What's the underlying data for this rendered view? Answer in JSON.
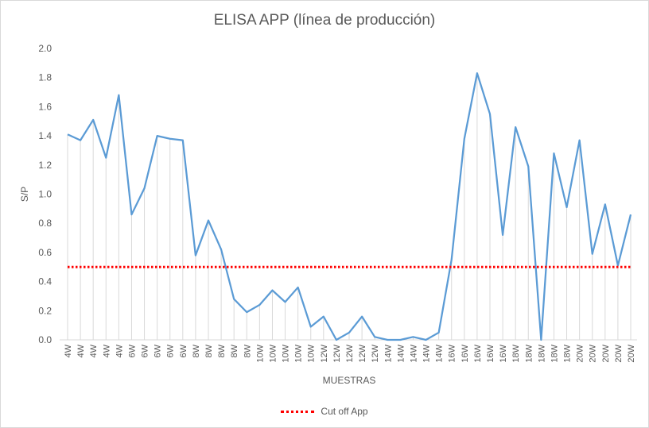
{
  "chart_data": {
    "type": "line",
    "title": "ELISA APP (línea de producción)",
    "xlabel": "MUESTRAS",
    "ylabel": "S/P",
    "ylim": [
      0,
      2.0
    ],
    "yticks": [
      "0.0",
      "0.2",
      "0.4",
      "0.6",
      "0.8",
      "1.0",
      "1.2",
      "1.4",
      "1.6",
      "1.8",
      "2.0"
    ],
    "grid": "vertical drop lines",
    "legend_position": "bottom",
    "categories": [
      "4W",
      "4W",
      "4W",
      "4W",
      "4W",
      "6W",
      "6W",
      "6W",
      "6W",
      "6W",
      "8W",
      "8W",
      "8W",
      "8W",
      "8W",
      "10W",
      "10W",
      "10W",
      "10W",
      "10W",
      "12W",
      "12W",
      "12W",
      "12W",
      "12W",
      "14W",
      "14W",
      "14W",
      "14W",
      "14W",
      "16W",
      "16W",
      "16W",
      "16W",
      "16W",
      "18W",
      "18W",
      "18W",
      "18W",
      "18W",
      "20W",
      "20W",
      "20W",
      "20W",
      "20W"
    ],
    "series": [
      {
        "name": "",
        "color": "#5b9bd5",
        "values": [
          1.41,
          1.37,
          1.51,
          1.25,
          1.68,
          0.86,
          1.04,
          1.4,
          1.38,
          1.37,
          0.58,
          0.82,
          0.62,
          0.28,
          0.19,
          0.24,
          0.34,
          0.26,
          0.36,
          0.09,
          0.16,
          0.0,
          0.05,
          0.16,
          0.02,
          0.0,
          0.0,
          0.02,
          0.0,
          0.05,
          0.55,
          1.38,
          1.83,
          1.55,
          0.72,
          1.46,
          1.19,
          0.0,
          1.28,
          0.91,
          1.37,
          0.59,
          0.93,
          0.51,
          0.86
        ]
      },
      {
        "name": "Cut off App",
        "color": "#ff0000",
        "style": "dotted",
        "constant": 0.5
      }
    ]
  }
}
